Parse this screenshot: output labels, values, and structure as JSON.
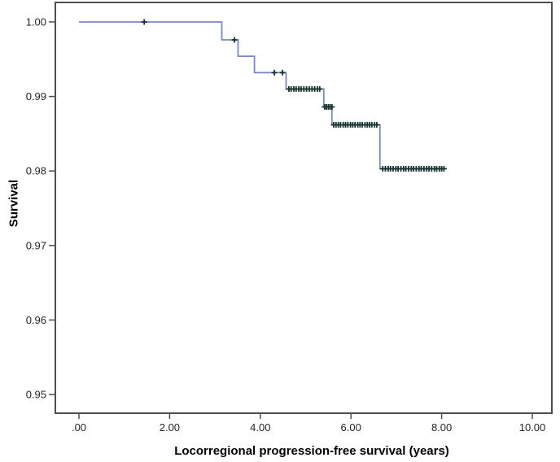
{
  "figure": {
    "background_color": "#ffffff"
  },
  "chart_data": {
    "type": "line",
    "subtype": "kaplan-meier-step",
    "title": "",
    "xlabel": "Locorregional progression-free survival (years)",
    "ylabel": "Survival",
    "xlim": [
      -0.52,
      10.43
    ],
    "ylim": [
      0.9475,
      1.0026
    ],
    "grid": false,
    "legend": "none",
    "frame_color": "#4f4f4f",
    "text_color": "#262626",
    "x_ticks": [
      0,
      2,
      4,
      6,
      8,
      10
    ],
    "x_tick_labels": [
      ".00",
      "2.00",
      "4.00",
      "6.00",
      "8.00",
      "10.00"
    ],
    "y_ticks": [
      1.0,
      0.99,
      0.98,
      0.97,
      0.96,
      0.95
    ],
    "y_tick_labels": [
      "1.00",
      "0.99",
      "0.98",
      "0.97",
      "0.96",
      "0.95"
    ],
    "curve": {
      "color": "#7a88c8",
      "start": [
        0,
        1.0
      ],
      "drops": [
        [
          3.15,
          0.9976
        ],
        [
          3.51,
          0.9954
        ],
        [
          3.87,
          0.9932
        ],
        [
          4.57,
          0.991
        ],
        [
          5.4,
          0.9886
        ],
        [
          5.58,
          0.9862
        ],
        [
          6.64,
          0.9803
        ]
      ],
      "end_time": 8.08
    },
    "censors": {
      "color": "#17342e",
      "symbol": "plus",
      "groups": [
        {
          "survival": 1.0,
          "times": [
            1.44
          ]
        },
        {
          "survival": 0.9976,
          "times": [
            3.43
          ]
        },
        {
          "survival": 0.9932,
          "times": [
            4.31,
            4.49
          ]
        },
        {
          "survival": 0.991,
          "times": [
            4.63,
            4.68,
            4.74,
            4.79,
            4.85,
            4.9,
            4.96,
            5.02,
            5.08,
            5.14,
            5.2,
            5.26,
            5.31
          ]
        },
        {
          "survival": 0.9886,
          "times": [
            5.42,
            5.46,
            5.5,
            5.54,
            5.58
          ]
        },
        {
          "survival": 0.9862,
          "times": [
            5.62,
            5.67,
            5.72,
            5.77,
            5.83,
            5.88,
            5.93,
            5.99,
            6.04,
            6.09,
            6.15,
            6.2,
            6.25,
            6.31,
            6.36,
            6.41,
            6.46,
            6.52,
            6.57
          ]
        },
        {
          "survival": 0.9803,
          "times": [
            6.7,
            6.76,
            6.82,
            6.87,
            6.93,
            6.99,
            7.04,
            7.1,
            7.16,
            7.21,
            7.27,
            7.33,
            7.38,
            7.44,
            7.5,
            7.55,
            7.61,
            7.67,
            7.72,
            7.78,
            7.84,
            7.89,
            7.95,
            8.0,
            8.05
          ]
        }
      ]
    }
  }
}
